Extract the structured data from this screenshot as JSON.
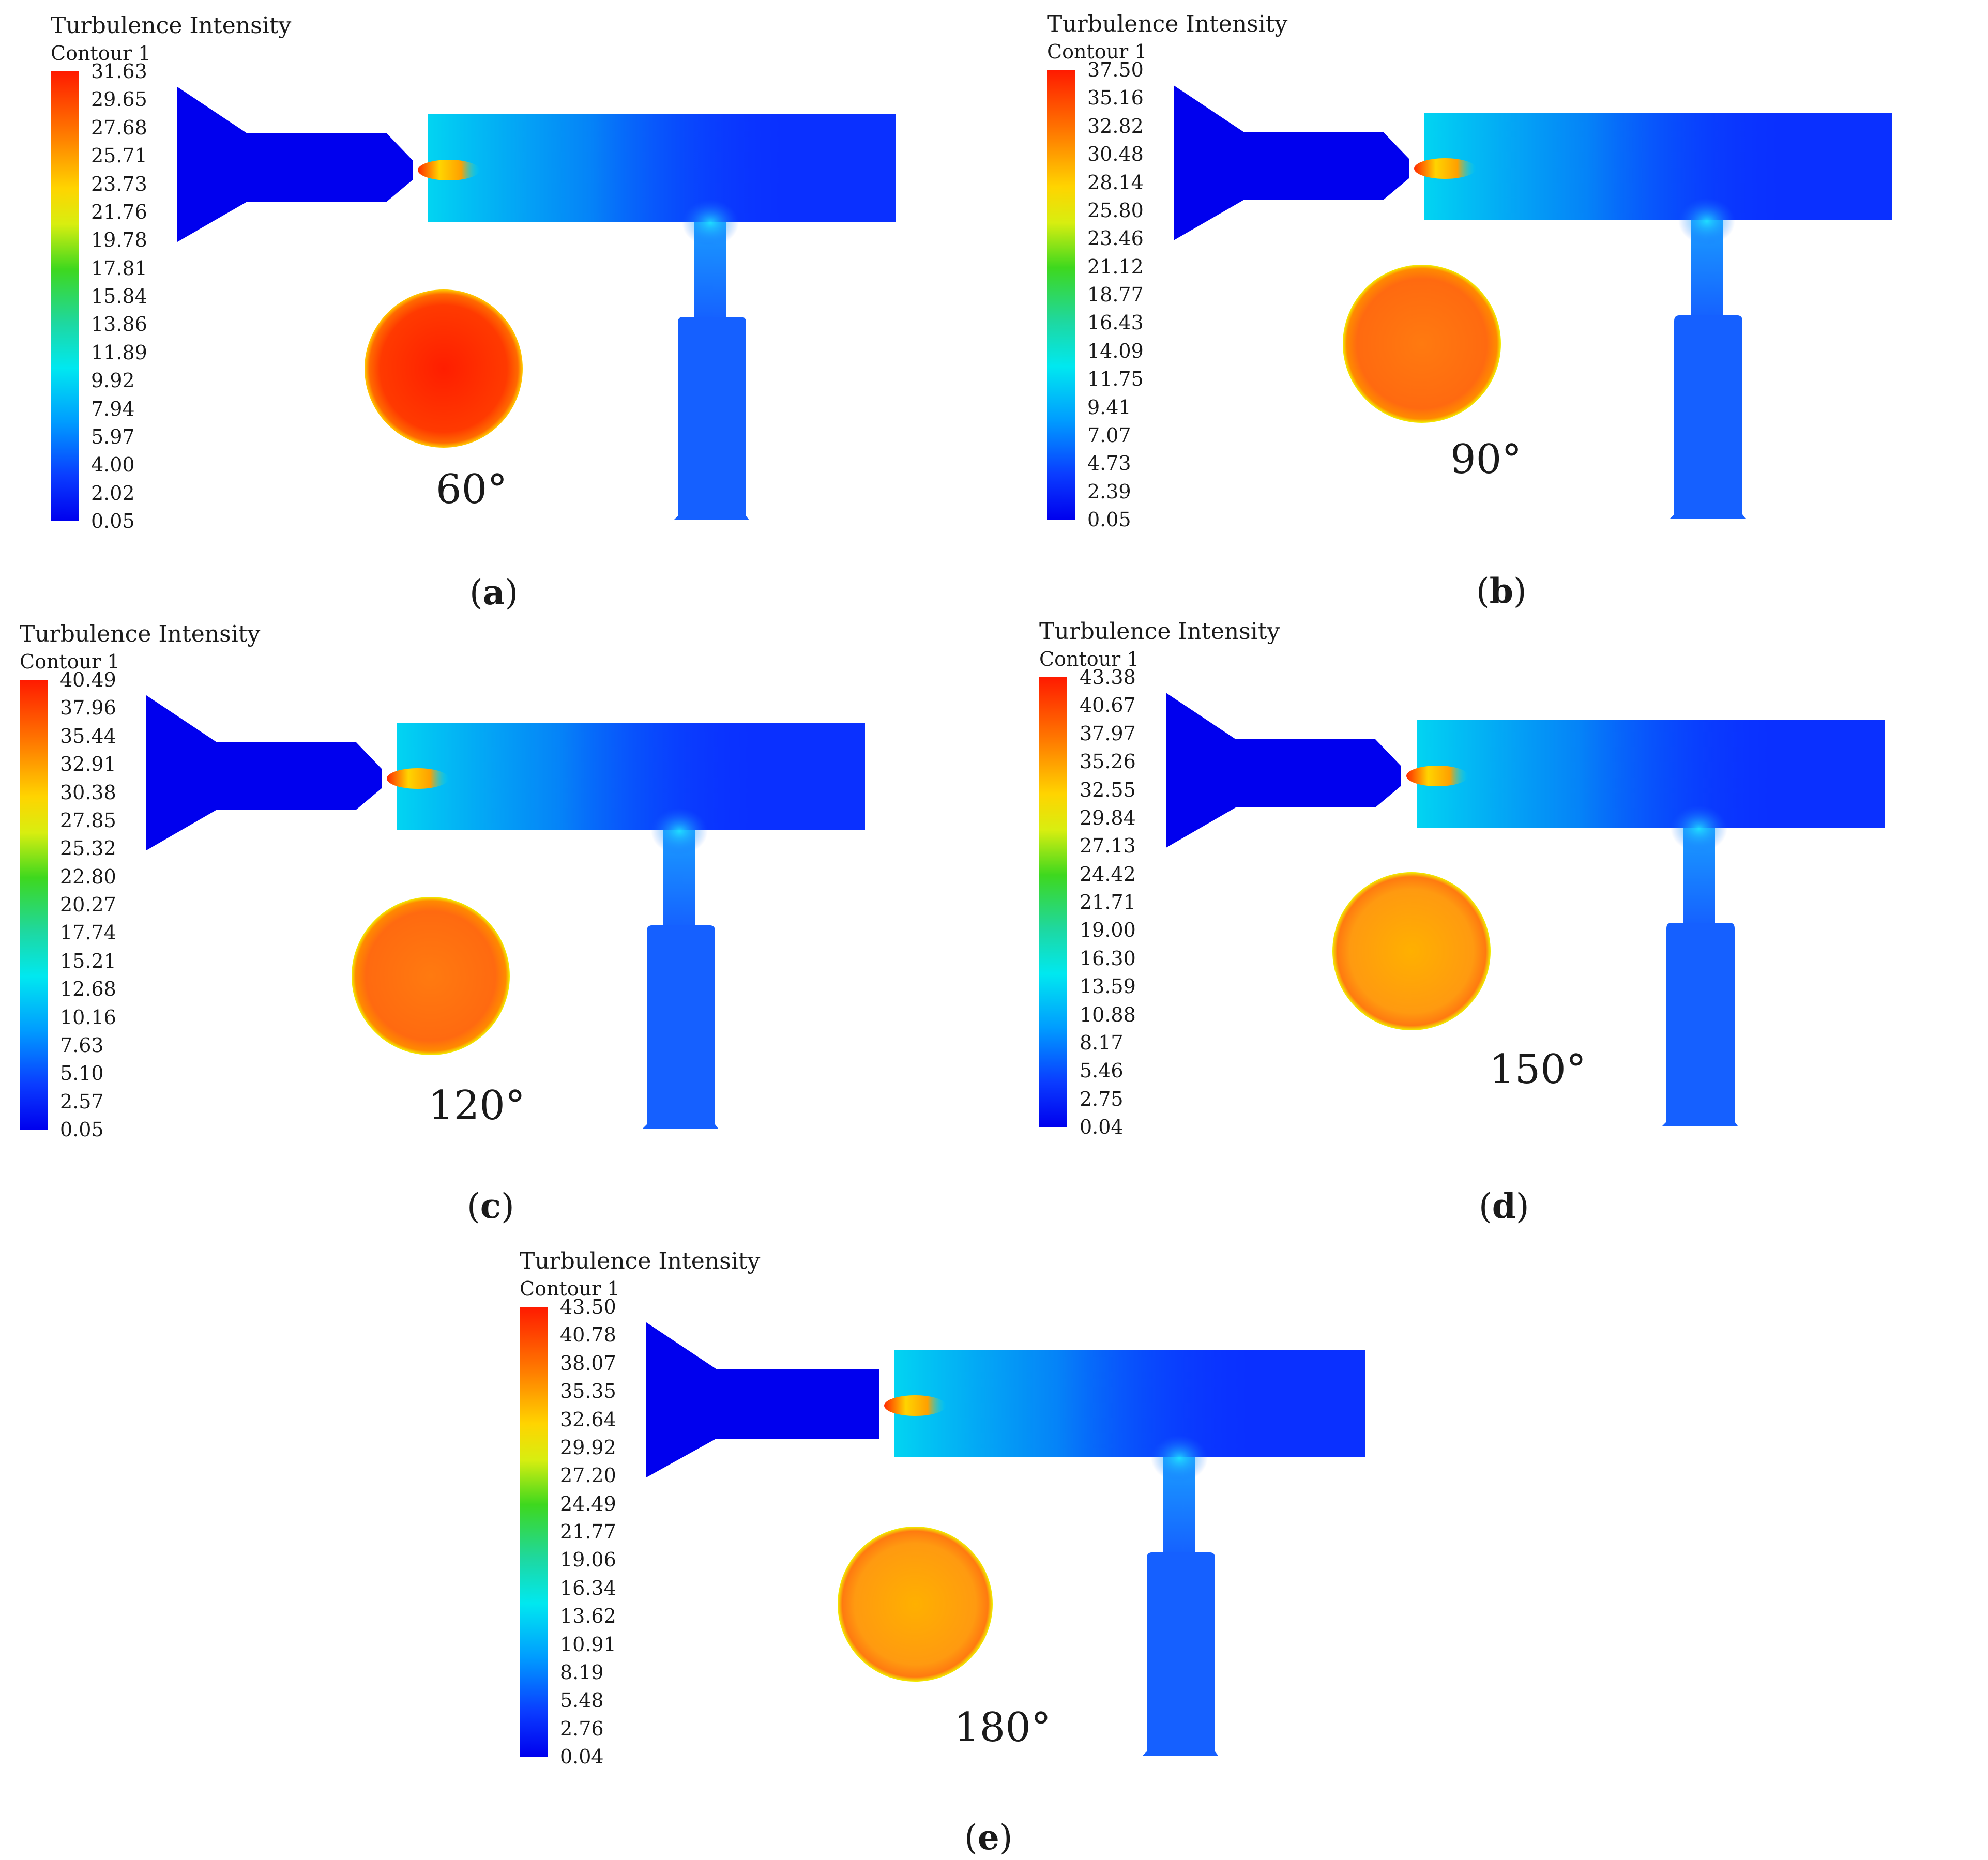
{
  "colors": {
    "red": "#ff1a00",
    "orange": "#ff7a00",
    "yellow": "#ffd400",
    "green": "#3ed81e",
    "cyan": "#00e8f0",
    "blue": "#0000ee",
    "pipe_blue": "#0a3cff"
  },
  "panels": [
    {
      "id": "a",
      "title": "Turbulence Intensity",
      "subtitle": "Contour 1",
      "angle": "60°",
      "caption_open": "(",
      "caption_letter": "a",
      "caption_close": ")",
      "ticks": [
        "31.63",
        "29.65",
        "27.68",
        "25.71",
        "23.73",
        "21.76",
        "19.78",
        "17.81",
        "15.84",
        "13.86",
        "11.89",
        "9.92",
        "7.94",
        "5.97",
        "4.00",
        "2.02",
        "0.05"
      ]
    },
    {
      "id": "b",
      "title": "Turbulence Intensity",
      "subtitle": "Contour 1",
      "angle": "90°",
      "caption_open": "(",
      "caption_letter": "b",
      "caption_close": ")",
      "ticks": [
        "37.50",
        "35.16",
        "32.82",
        "30.48",
        "28.14",
        "25.80",
        "23.46",
        "21.12",
        "18.77",
        "16.43",
        "14.09",
        "11.75",
        "9.41",
        "7.07",
        "4.73",
        "2.39",
        "0.05"
      ]
    },
    {
      "id": "c",
      "title": "Turbulence Intensity",
      "subtitle": "Contour 1",
      "angle": "120°",
      "caption_open": "(",
      "caption_letter": "c",
      "caption_close": ")",
      "ticks": [
        "40.49",
        "37.96",
        "35.44",
        "32.91",
        "30.38",
        "27.85",
        "25.32",
        "22.80",
        "20.27",
        "17.74",
        "15.21",
        "12.68",
        "10.16",
        "7.63",
        "5.10",
        "2.57",
        "0.05"
      ]
    },
    {
      "id": "d",
      "title": "Turbulence Intensity",
      "subtitle": "Contour 1",
      "angle": "150°",
      "caption_open": "(",
      "caption_letter": "d",
      "caption_close": ")",
      "ticks": [
        "43.38",
        "40.67",
        "37.97",
        "35.26",
        "32.55",
        "29.84",
        "27.13",
        "24.42",
        "21.71",
        "19.00",
        "16.30",
        "13.59",
        "10.88",
        "8.17",
        "5.46",
        "2.75",
        "0.04"
      ]
    },
    {
      "id": "e",
      "title": "Turbulence Intensity",
      "subtitle": "Contour 1",
      "angle": "180°",
      "caption_open": "(",
      "caption_letter": "e",
      "caption_close": ")",
      "ticks": [
        "43.50",
        "40.78",
        "38.07",
        "35.35",
        "32.64",
        "29.92",
        "27.20",
        "24.49",
        "21.77",
        "19.06",
        "16.34",
        "13.62",
        "10.91",
        "8.19",
        "5.48",
        "2.76",
        "0.04"
      ]
    }
  ]
}
